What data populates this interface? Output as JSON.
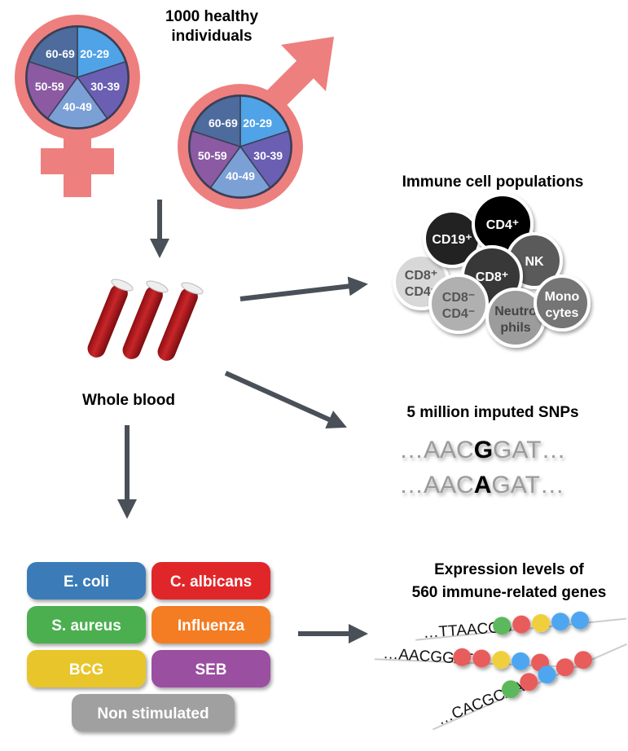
{
  "cohort": {
    "title_line1": "1000 healthy",
    "title_line2": "individuals",
    "age_groups": [
      "20-29",
      "30-39",
      "40-49",
      "50-59",
      "60-69"
    ],
    "age_colors": [
      "#4fa3e6",
      "#6b5fb3",
      "#7ba0d6",
      "#8c5aa3",
      "#4d6b9c"
    ],
    "symbol_color": "#ee7f7f"
  },
  "blood": {
    "label": "Whole blood"
  },
  "immune": {
    "title": "Immune cell populations",
    "cells": [
      {
        "line1": "CD8⁺",
        "line2": "CD4⁺",
        "color": "#d8d8d8",
        "text": "#555"
      },
      {
        "line1": "CD19⁺",
        "line2": "",
        "color": "#222222",
        "text": "#fff"
      },
      {
        "line1": "CD4⁺",
        "line2": "",
        "color": "#000000",
        "text": "#fff"
      },
      {
        "line1": "NK",
        "line2": "",
        "color": "#5a5a5a",
        "text": "#fff"
      },
      {
        "line1": "CD8⁺",
        "line2": "",
        "color": "#383838",
        "text": "#fff"
      },
      {
        "line1": "CD8⁻",
        "line2": "CD4⁻",
        "color": "#b0b0b0",
        "text": "#555"
      },
      {
        "line1": "Neutro",
        "line2": "phils",
        "color": "#9c9c9c",
        "text": "#444"
      },
      {
        "line1": "Mono",
        "line2": "cytes",
        "color": "#757575",
        "text": "#fff"
      }
    ]
  },
  "snps": {
    "title": "5 million imputed SNPs",
    "seq1": {
      "prefix": "…AAC",
      "variant": "G",
      "suffix": "GAT…"
    },
    "seq2": {
      "prefix": "…AAC",
      "variant": "A",
      "suffix": "GAT…"
    }
  },
  "stimuli": [
    {
      "label": "E. coli",
      "color": "#3a7bb8"
    },
    {
      "label": "C. albicans",
      "color": "#e1262b"
    },
    {
      "label": "S. aureus",
      "color": "#4caf50"
    },
    {
      "label": "Influenza",
      "color": "#f47b20"
    },
    {
      "label": "BCG",
      "color": "#e8c52a"
    },
    {
      "label": "SEB",
      "color": "#9a4fa0"
    },
    {
      "label": "Non stimulated",
      "color": "#a0a0a0"
    }
  ],
  "expression": {
    "title_line1": "Expression levels of",
    "title_line2": "560 immune-related genes",
    "reads": [
      {
        "seq": "…TTAACGG",
        "beads": [
          "#5cb85c",
          "#e85c5c",
          "#f0cf3c",
          "#4fa6f0",
          "#4fa6f0"
        ]
      },
      {
        "seq": "…AACGGAT",
        "beads": [
          "#e85c5c",
          "#e85c5c",
          "#f0cf3c",
          "#4fa6f0",
          "#e85c5c"
        ]
      },
      {
        "seq": "…CACGCAA",
        "beads": [
          "#5cb85c",
          "#e85c5c",
          "#4fa6f0",
          "#e85c5c",
          "#e85c5c"
        ]
      }
    ]
  },
  "arrow_color": "#4a5058"
}
